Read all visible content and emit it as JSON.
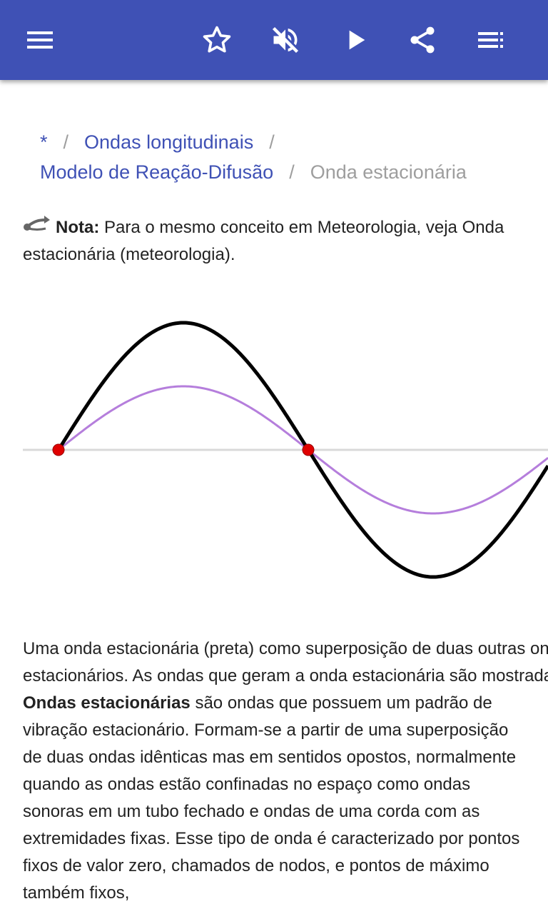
{
  "toolbar": {
    "icons": [
      "menu-icon",
      "star-icon",
      "volume-off-icon",
      "play-icon",
      "share-icon",
      "playlist-icon"
    ],
    "color": "#3f51b5"
  },
  "breadcrumb": {
    "items": [
      "*",
      "Ondas longitudinais",
      "Modelo de Reação-Difusão"
    ],
    "separator": "/",
    "current": "Onda estacionária",
    "link_color": "#3f51b5"
  },
  "note": {
    "label": "Nota:",
    "text": "Para o mesmo conceito em Meteorologia, veja Onda estacionária (meteorologia)."
  },
  "figure": {
    "description_colors": {
      "standing_wave": "#000000",
      "component_wave": "#b57edc",
      "nodes": "#e00000",
      "axis": "#d9d9d9"
    }
  },
  "caption": {
    "line1": "Uma onda estacionária (preta) como superposição de duas outras ondas",
    "line2": "estacionários. As ondas que geram a onda estacionária são mostradas"
  },
  "article": {
    "term": "Ondas estacionárias",
    "text": "são ondas que possuem um padrão de vibração estacionário. Formam-se a partir de uma superposição de duas ondas idênticas mas em sentidos opostos, normalmente quando as ondas estão confinadas no espaço como ondas sonoras em um tubo fechado e ondas de uma corda com as extremidades fixas. Esse tipo de onda é caracterizado por pontos fixos de valor zero, chamados de nodos, e pontos de máximo também fixos,"
  }
}
